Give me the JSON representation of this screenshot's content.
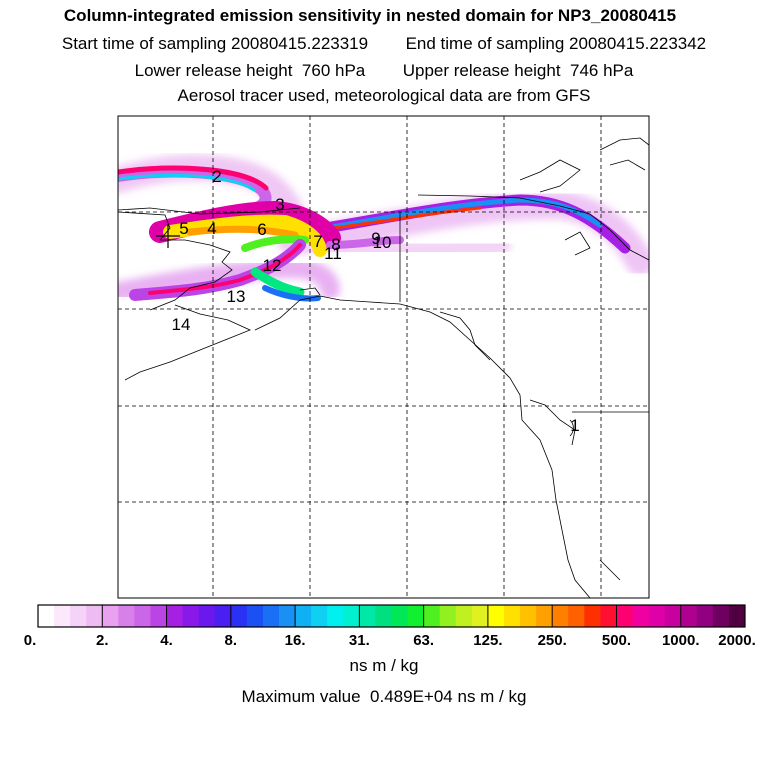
{
  "header": {
    "title": "Column-integrated emission sensitivity in nested domain for NP3_20080415",
    "start_label": "Start time of sampling",
    "start_value": "20080415.223319",
    "end_label": "End time of sampling",
    "end_value": "20080415.223342",
    "lower_label": "Lower release height",
    "lower_value": "760 hPa",
    "upper_label": "Upper release height",
    "upper_value": "746 hPa",
    "info": "Aerosol tracer used, meteorological data are from GFS"
  },
  "map": {
    "trajectory_labels": [
      "1",
      "2",
      "3",
      "4",
      "5",
      "6",
      "7",
      "8",
      "9",
      "10",
      "11",
      "12",
      "13",
      "14"
    ]
  },
  "colorbar": {
    "ticks": [
      "0.",
      "2.",
      "4.",
      "8.",
      "16.",
      "31.",
      "63.",
      "125.",
      "250.",
      "500.",
      "1000.",
      "2000."
    ],
    "colors": [
      "#ffffff",
      "#fbe8fb",
      "#f5d2f7",
      "#efbbf3",
      "#e8a2ef",
      "#d880ea",
      "#cc66e8",
      "#bb44e6",
      "#a620e4",
      "#8a18e8",
      "#6a18ee",
      "#4a20f2",
      "#2a30f4",
      "#1a50f4",
      "#1a70f4",
      "#1a90f4",
      "#10b0f4",
      "#10d0f2",
      "#00f0f0",
      "#00f0d0",
      "#00e8a8",
      "#00e080",
      "#00e858",
      "#10f030",
      "#50f020",
      "#90f020",
      "#c0f020",
      "#e0f020",
      "#ffff00",
      "#ffe000",
      "#ffc000",
      "#ffa000",
      "#ff8000",
      "#ff6000",
      "#ff3000",
      "#ff1030",
      "#ff0070",
      "#f000a0",
      "#e000a8",
      "#c800a0",
      "#b00090",
      "#900080",
      "#700060",
      "#500040"
    ],
    "units": "ns m / kg",
    "max_label": "Maximum value",
    "max_value": "0.489E+04",
    "max_units": "ns m / kg"
  }
}
